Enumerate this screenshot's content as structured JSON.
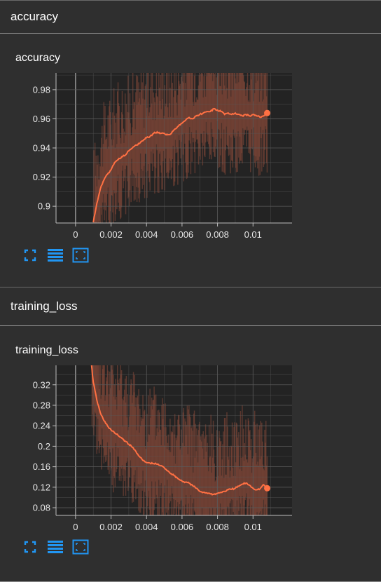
{
  "sections": [
    {
      "header": "accuracy",
      "card_title": "accuracy"
    },
    {
      "header": "training_loss",
      "card_title": "training_loss"
    }
  ],
  "icons": [
    "fullscreen-icon",
    "toggle-log-scale-icon",
    "fit-domain-icon"
  ],
  "colors": {
    "background": "#2f2f2f",
    "plot_background": "#232323",
    "grid": "#5a5a5a",
    "line": "#ff7043",
    "band": "#8a4a3a",
    "icon": "#2196f3"
  },
  "chart_data": [
    {
      "type": "line",
      "title": "accuracy",
      "x_ticks": [
        "0",
        "0.002",
        "0.004",
        "0.006",
        "0.008",
        "0.01"
      ],
      "x_tick_values": [
        0,
        0.002,
        0.004,
        0.006,
        0.008,
        0.01
      ],
      "y_ticks": [
        "0.9",
        "0.92",
        "0.94",
        "0.96",
        "0.98"
      ],
      "y_tick_values": [
        0.9,
        0.92,
        0.94,
        0.96,
        0.98
      ],
      "xlim": [
        -0.0011,
        0.0122
      ],
      "ylim": [
        0.8885,
        0.9915
      ],
      "grid": true,
      "series": [
        {
          "x": [
            0.001,
            0.0012,
            0.0014,
            0.0016,
            0.0018,
            0.002,
            0.0022,
            0.0024,
            0.0026,
            0.0028,
            0.003,
            0.0032,
            0.0034,
            0.0036,
            0.0038,
            0.004,
            0.0042,
            0.0044,
            0.0046,
            0.0048,
            0.005,
            0.0052,
            0.0054,
            0.0056,
            0.0058,
            0.006,
            0.0062,
            0.0064,
            0.0066,
            0.0068,
            0.007,
            0.0072,
            0.0074,
            0.0076,
            0.0078,
            0.008,
            0.0082,
            0.0084,
            0.0086,
            0.0088,
            0.009,
            0.0092,
            0.0094,
            0.0096,
            0.0098,
            0.01,
            0.0102,
            0.0104,
            0.0106,
            0.0108
          ],
          "values": [
            0.889,
            0.902,
            0.912,
            0.918,
            0.922,
            0.925,
            0.93,
            0.932,
            0.934,
            0.935,
            0.938,
            0.94,
            0.942,
            0.943,
            0.945,
            0.947,
            0.948,
            0.95,
            0.951,
            0.95,
            0.95,
            0.949,
            0.95,
            0.953,
            0.955,
            0.957,
            0.959,
            0.961,
            0.96,
            0.962,
            0.963,
            0.964,
            0.965,
            0.965,
            0.967,
            0.966,
            0.965,
            0.963,
            0.964,
            0.963,
            0.964,
            0.963,
            0.962,
            0.963,
            0.962,
            0.963,
            0.962,
            0.961,
            0.962,
            0.964
          ]
        }
      ]
    },
    {
      "type": "line",
      "title": "training_loss",
      "x_ticks": [
        "0",
        "0.002",
        "0.004",
        "0.006",
        "0.008",
        "0.01"
      ],
      "x_tick_values": [
        0,
        0.002,
        0.004,
        0.006,
        0.008,
        0.01
      ],
      "y_ticks": [
        "0.08",
        "0.12",
        "0.16",
        "0.2",
        "0.24",
        "0.28",
        "0.32"
      ],
      "y_tick_values": [
        0.08,
        0.12,
        0.16,
        0.2,
        0.24,
        0.28,
        0.32
      ],
      "xlim": [
        -0.0011,
        0.0122
      ],
      "ylim": [
        0.065,
        0.358
      ],
      "grid": true,
      "series": [
        {
          "x": [
            0.0009,
            0.001,
            0.0012,
            0.0014,
            0.0016,
            0.0018,
            0.002,
            0.0022,
            0.0024,
            0.0026,
            0.0028,
            0.003,
            0.0032,
            0.0034,
            0.0036,
            0.0038,
            0.004,
            0.0042,
            0.0044,
            0.0046,
            0.0048,
            0.005,
            0.0052,
            0.0054,
            0.0056,
            0.0058,
            0.006,
            0.0062,
            0.0064,
            0.0066,
            0.0068,
            0.007,
            0.0072,
            0.0074,
            0.0076,
            0.0078,
            0.008,
            0.0082,
            0.0084,
            0.0086,
            0.0088,
            0.009,
            0.0092,
            0.0094,
            0.0096,
            0.0098,
            0.01,
            0.0102,
            0.0104,
            0.0106,
            0.0108
          ],
          "values": [
            0.358,
            0.325,
            0.29,
            0.265,
            0.25,
            0.24,
            0.232,
            0.226,
            0.221,
            0.216,
            0.21,
            0.204,
            0.198,
            0.19,
            0.18,
            0.172,
            0.168,
            0.167,
            0.166,
            0.165,
            0.162,
            0.158,
            0.152,
            0.146,
            0.142,
            0.136,
            0.132,
            0.13,
            0.128,
            0.123,
            0.118,
            0.112,
            0.11,
            0.109,
            0.107,
            0.106,
            0.108,
            0.11,
            0.112,
            0.115,
            0.116,
            0.118,
            0.122,
            0.126,
            0.128,
            0.124,
            0.118,
            0.115,
            0.117,
            0.125,
            0.118
          ]
        }
      ]
    }
  ]
}
